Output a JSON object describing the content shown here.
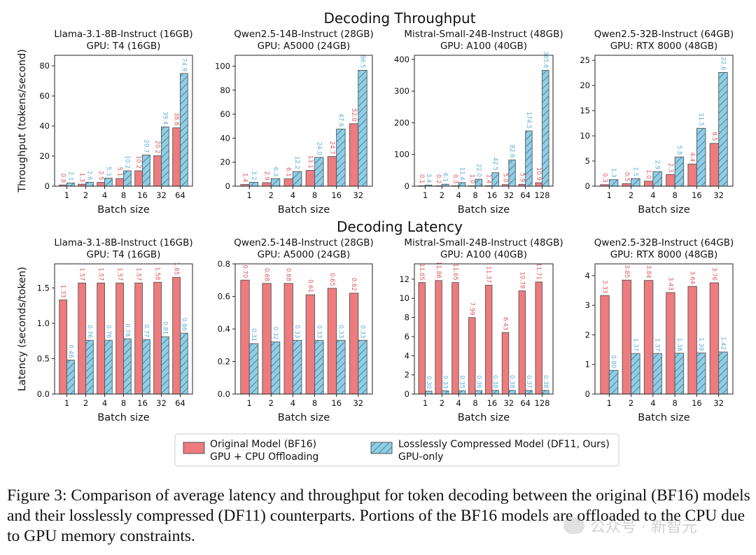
{
  "figure": {
    "row_titles": [
      "Decoding Throughput",
      "Decoding Latency"
    ],
    "legend": {
      "original": [
        "Original Model (BF16)",
        "GPU + CPU Offloading"
      ],
      "compressed": [
        "Losslessly Compressed Model (DF11, Ours)",
        "GPU-only"
      ]
    },
    "colors": {
      "original": "#ee7b7d",
      "compressed": "#8ecfe7",
      "hatch": "#3f6f86",
      "edge": "#555555"
    }
  },
  "caption": {
    "text": "Figure 3: Comparison of average latency and throughput for token decoding between the original (BF16) models and their losslessly compressed (DF11) counterparts. Portions of the BF16 models are offloaded to the CPU due to GPU memory constraints."
  },
  "watermark": {
    "text": "公众号 · 新智元"
  },
  "chart_data": [
    {
      "type": "bar",
      "title": "Llama-3.1-8B-Instruct (16GB)",
      "subtitle": "GPU: T4 (16GB)",
      "xlabel": "Batch size",
      "ylabel": "Throughput (tokens/second)",
      "categories": [
        "1",
        "2",
        "4",
        "8",
        "16",
        "32",
        "64"
      ],
      "ylim": [
        0,
        87
      ],
      "yticks": [
        0,
        20,
        40,
        60,
        80
      ],
      "series": [
        {
          "name": "Original Model (BF16)",
          "values": [
            0.8,
            1.3,
            2.5,
            5.1,
            10.2,
            20.2,
            38.8
          ],
          "labels": [
            "0.8",
            "1.3",
            "2.5",
            "5.1",
            "10.2",
            "20.2",
            "38.8"
          ]
        },
        {
          "name": "Losslessly Compressed Model (DF11, Ours)",
          "values": [
            2.1,
            2.6,
            5.3,
            10.2,
            20.7,
            39.4,
            74.9
          ],
          "labels": [
            "2.1",
            "2.6",
            "5.3",
            "10.2",
            "20.7",
            "39.4",
            "74.9"
          ]
        }
      ]
    },
    {
      "type": "bar",
      "title": "Qwen2.5-14B-Instruct (28GB)",
      "subtitle": "GPU: A5000 (24GB)",
      "xlabel": "Batch size",
      "ylabel": "",
      "categories": [
        "1",
        "2",
        "4",
        "8",
        "16",
        "32"
      ],
      "ylim": [
        0,
        109
      ],
      "yticks": [
        0,
        20,
        40,
        60,
        80,
        100
      ],
      "series": [
        {
          "name": "Original Model (BF16)",
          "values": [
            1.4,
            2.9,
            6.1,
            13.1,
            24.7,
            52.0
          ],
          "labels": [
            "1.4",
            "2.9",
            "6.1",
            "13.1",
            "24.7",
            "52.0"
          ]
        },
        {
          "name": "Losslessly Compressed Model (DF11, Ours)",
          "values": [
            3.2,
            6.3,
            12.2,
            24.0,
            47.6,
            96.5
          ],
          "labels": [
            "3.2",
            "6.3",
            "12.2",
            "24.0",
            "47.6",
            "96.5"
          ]
        }
      ]
    },
    {
      "type": "bar",
      "title": "Mistral-Small-24B-Instruct (48GB)",
      "subtitle": "GPU: A100 (40GB)",
      "xlabel": "Batch size",
      "ylabel": "",
      "categories": [
        "1",
        "2",
        "4",
        "8",
        "16",
        "32",
        "64",
        "128"
      ],
      "ylim": [
        0,
        413
      ],
      "yticks": [
        0,
        100,
        200,
        300,
        400
      ],
      "series": [
        {
          "name": "Original Model (BF16)",
          "values": [
            0.1,
            0.2,
            0.3,
            1.0,
            1.4,
            5.0,
            5.9,
            10.9
          ],
          "labels": [
            "0.1",
            "0.2",
            "0.3",
            "1.0",
            "1.4",
            "5.0",
            "5.9",
            "10.9"
          ]
        },
        {
          "name": "Losslessly Compressed Model (DF11, Ours)",
          "values": [
            3.4,
            6.1,
            11.4,
            22.0,
            42.5,
            82.6,
            174.5,
            365.6
          ],
          "labels": [
            "3.4",
            "6.1",
            "11.4",
            "22.0",
            "42.5",
            "82.6",
            "174.5",
            "365.6"
          ]
        }
      ]
    },
    {
      "type": "bar",
      "title": "Qwen2.5-32B-Instruct (64GB)",
      "subtitle": "GPU: RTX 8000 (48GB)",
      "xlabel": "Batch size",
      "ylabel": "",
      "categories": [
        "1",
        "2",
        "4",
        "8",
        "16",
        "32"
      ],
      "ylim": [
        0,
        26
      ],
      "yticks": [
        0,
        5,
        10,
        15,
        20,
        25
      ],
      "series": [
        {
          "name": "Original Model (BF16)",
          "values": [
            0.3,
            0.5,
            1.0,
            2.3,
            4.4,
            8.5
          ],
          "labels": [
            "0.3",
            "0.5",
            "1.0",
            "2.3",
            "4.4",
            "8.5"
          ]
        },
        {
          "name": "Losslessly Compressed Model (DF11, Ours)",
          "values": [
            1.3,
            1.5,
            2.9,
            5.8,
            11.5,
            22.6
          ],
          "labels": [
            "1.3",
            "1.5",
            "2.9",
            "5.8",
            "11.5",
            "22.6"
          ]
        }
      ]
    },
    {
      "type": "bar",
      "title": "Llama-3.1-8B-Instruct (16GB)",
      "subtitle": "GPU: T4 (16GB)",
      "xlabel": "Batch size",
      "ylabel": "Latency (seconds/token)",
      "categories": [
        "1",
        "2",
        "4",
        "8",
        "16",
        "32",
        "64"
      ],
      "ylim": [
        0,
        1.84
      ],
      "yticks": [
        0.0,
        0.5,
        1.0,
        1.5
      ],
      "tick_decimals": 1,
      "series": [
        {
          "name": "Original Model (BF16)",
          "values": [
            1.33,
            1.57,
            1.57,
            1.57,
            1.57,
            1.58,
            1.65
          ],
          "labels": [
            "1.33",
            "1.57",
            "1.57",
            "1.57",
            "1.57",
            "1.58",
            "1.65"
          ]
        },
        {
          "name": "Losslessly Compressed Model (DF11, Ours)",
          "values": [
            0.48,
            0.76,
            0.76,
            0.78,
            0.77,
            0.81,
            0.86
          ],
          "labels": [
            "0.48",
            "0.76",
            "0.76",
            "0.78",
            "0.77",
            "0.81",
            "0.86"
          ]
        }
      ]
    },
    {
      "type": "bar",
      "title": "Qwen2.5-14B-Instruct (28GB)",
      "subtitle": "GPU: A5000 (24GB)",
      "xlabel": "Batch size",
      "ylabel": "",
      "categories": [
        "1",
        "2",
        "4",
        "8",
        "16",
        "32"
      ],
      "ylim": [
        0,
        0.8
      ],
      "yticks": [
        0.0,
        0.2,
        0.4,
        0.6,
        0.8
      ],
      "tick_decimals": 1,
      "series": [
        {
          "name": "Original Model (BF16)",
          "values": [
            0.7,
            0.68,
            0.68,
            0.61,
            0.65,
            0.62
          ],
          "labels": [
            "0.70",
            "0.68",
            "0.68",
            "0.61",
            "0.65",
            "0.62"
          ]
        },
        {
          "name": "Losslessly Compressed Model (DF11, Ours)",
          "values": [
            0.31,
            0.32,
            0.33,
            0.33,
            0.33,
            0.33
          ],
          "labels": [
            "0.31",
            "0.32",
            "0.33",
            "0.33",
            "0.33",
            "0.33"
          ]
        }
      ]
    },
    {
      "type": "bar",
      "title": "Mistral-Small-24B-Instruct (48GB)",
      "subtitle": "GPU: A100 (40GB)",
      "xlabel": "Batch size",
      "ylabel": "",
      "categories": [
        "1",
        "2",
        "4",
        "8",
        "16",
        "32",
        "64",
        "128"
      ],
      "ylim": [
        0,
        13.6
      ],
      "yticks": [
        0,
        2,
        4,
        6,
        8,
        10,
        12
      ],
      "series": [
        {
          "name": "Original Model (BF16)",
          "values": [
            11.65,
            11.86,
            11.65,
            7.99,
            11.37,
            6.43,
            10.78,
            11.71
          ],
          "labels": [
            "11.65",
            "11.86",
            "11.65",
            "7.99",
            "11.37",
            "6.43",
            "10.78",
            "11.71"
          ]
        },
        {
          "name": "Losslessly Compressed Model (DF11, Ours)",
          "values": [
            0.3,
            0.33,
            0.35,
            0.36,
            0.38,
            0.38,
            0.37,
            0.38
          ],
          "labels": [
            "0.30",
            "0.33",
            "0.35",
            "0.36",
            "0.38",
            "0.38",
            "0.37",
            "0.38"
          ]
        }
      ]
    },
    {
      "type": "bar",
      "title": "Qwen2.5-32B-Instruct (64GB)",
      "subtitle": "GPU: RTX 8000 (48GB)",
      "xlabel": "Batch size",
      "ylabel": "",
      "categories": [
        "1",
        "2",
        "4",
        "8",
        "16",
        "32"
      ],
      "ylim": [
        0,
        4.4
      ],
      "yticks": [
        0,
        1,
        2,
        3,
        4
      ],
      "series": [
        {
          "name": "Original Model (BF16)",
          "values": [
            3.33,
            3.85,
            3.84,
            3.43,
            3.64,
            3.76
          ],
          "labels": [
            "3.33",
            "3.85",
            "3.84",
            "3.43",
            "3.64",
            "3.76"
          ]
        },
        {
          "name": "Losslessly Compressed Model (DF11, Ours)",
          "values": [
            0.8,
            1.37,
            1.37,
            1.38,
            1.39,
            1.42
          ],
          "labels": [
            "0.80",
            "1.37",
            "1.37",
            "1.38",
            "1.39",
            "1.42"
          ]
        }
      ]
    }
  ]
}
